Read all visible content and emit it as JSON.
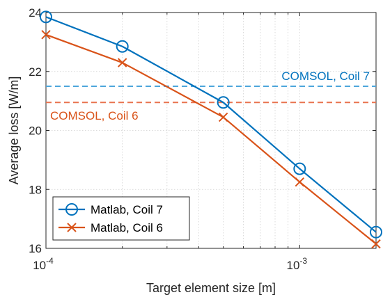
{
  "chart_data": {
    "type": "line",
    "xscale": "log",
    "xlabel": "Target element size [m]",
    "ylabel": "Average loss [W/m]",
    "xlim": [
      0.0001,
      0.002
    ],
    "ylim": [
      16,
      24
    ],
    "x_ticks": [
      {
        "value": 0.0001,
        "base": "10",
        "exp": "-4"
      },
      {
        "value": 0.001,
        "base": "10",
        "exp": "-3"
      }
    ],
    "y_ticks": [
      {
        "value": 16,
        "label": "16"
      },
      {
        "value": 18,
        "label": "18"
      },
      {
        "value": 20,
        "label": "20"
      },
      {
        "value": 22,
        "label": "22"
      },
      {
        "value": 24,
        "label": "24"
      }
    ],
    "grid": true,
    "legend_position": "bottom-left",
    "series": [
      {
        "name": "Matlab, Coil 7",
        "marker": "circle",
        "color": "#0072BD",
        "x": [
          0.0001,
          0.0002,
          0.0005,
          0.001,
          0.002
        ],
        "y": [
          23.85,
          22.85,
          20.95,
          18.7,
          16.55
        ]
      },
      {
        "name": "Matlab, Coil 6",
        "marker": "x",
        "color": "#D95319",
        "x": [
          0.0001,
          0.0002,
          0.0005,
          0.001,
          0.002
        ],
        "y": [
          23.25,
          22.3,
          20.45,
          18.25,
          16.15
        ]
      }
    ],
    "reference_lines": [
      {
        "label": "COMSOL, Coil 7",
        "y": 21.5,
        "color": "#4DA6DB",
        "style": "dashed"
      },
      {
        "label": "COMSOL, Coil 6",
        "y": 20.95,
        "color": "#E8734F",
        "style": "dashed"
      }
    ]
  }
}
